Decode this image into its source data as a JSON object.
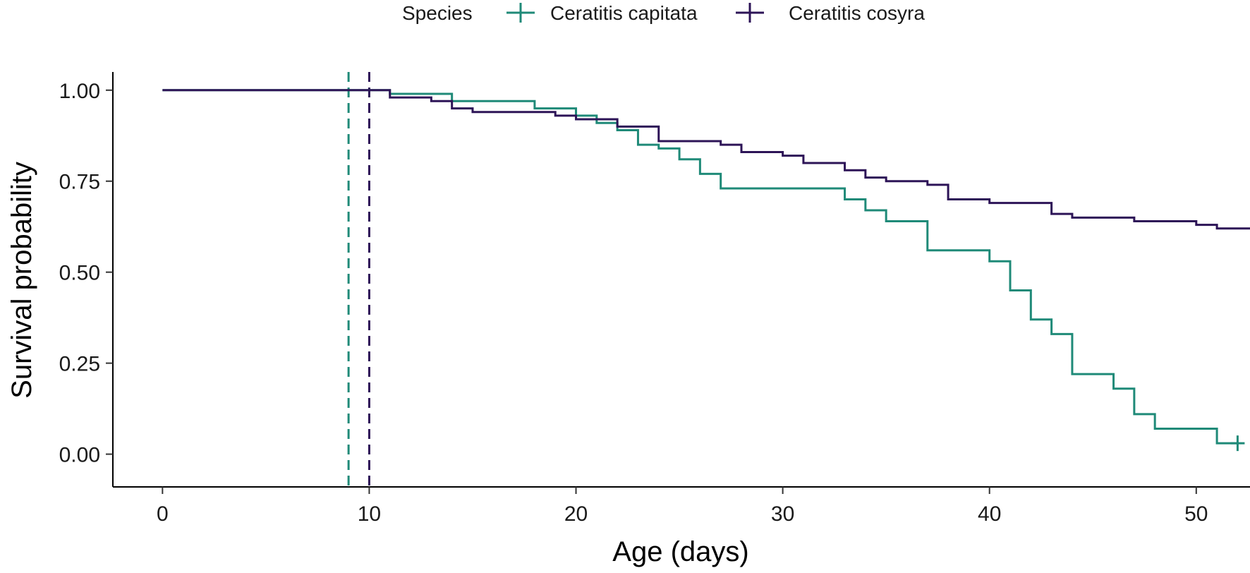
{
  "chart_data": {
    "type": "line",
    "subtype": "kaplan-meier step",
    "xlabel": "Age (days)",
    "ylabel": "Survival probability",
    "xlim": [
      -2.4,
      52.6
    ],
    "ylim": [
      -0.09,
      1.05
    ],
    "xticks": [
      0,
      10,
      20,
      30,
      40,
      50
    ],
    "yticks": [
      0.0,
      0.25,
      0.5,
      0.75,
      1.0
    ],
    "ytick_labels": [
      "0.00",
      "0.25",
      "0.50",
      "0.75",
      "1.00"
    ],
    "legend": {
      "title": "Species",
      "position": "top",
      "entries": [
        "Ceratitis capitata",
        "Ceratitis cosyra"
      ]
    },
    "vlines": [
      {
        "x": 9,
        "series": "Ceratitis capitata",
        "style": "dashed"
      },
      {
        "x": 10,
        "series": "Ceratitis cosyra",
        "style": "dashed"
      }
    ],
    "series": [
      {
        "name": "Ceratitis capitata",
        "color": "#1f8a78",
        "steps": [
          [
            0,
            1.0
          ],
          [
            11,
            0.99
          ],
          [
            14,
            0.97
          ],
          [
            18,
            0.95
          ],
          [
            20,
            0.93
          ],
          [
            21,
            0.91
          ],
          [
            22,
            0.89
          ],
          [
            23,
            0.85
          ],
          [
            24,
            0.84
          ],
          [
            25,
            0.81
          ],
          [
            26,
            0.77
          ],
          [
            27,
            0.73
          ],
          [
            33,
            0.7
          ],
          [
            34,
            0.67
          ],
          [
            35,
            0.64
          ],
          [
            37,
            0.56
          ],
          [
            40,
            0.53
          ],
          [
            41,
            0.45
          ],
          [
            42,
            0.37
          ],
          [
            43,
            0.33
          ],
          [
            44,
            0.22
          ],
          [
            46,
            0.18
          ],
          [
            47,
            0.11
          ],
          [
            48,
            0.07
          ],
          [
            49,
            0.07
          ],
          [
            51,
            0.03
          ]
        ],
        "end_x": 52,
        "censor": [
          [
            52,
            0.03
          ]
        ]
      },
      {
        "name": "Ceratitis cosyra",
        "color": "#2d1457",
        "steps": [
          [
            0,
            1.0
          ],
          [
            11,
            0.98
          ],
          [
            13,
            0.97
          ],
          [
            14,
            0.95
          ],
          [
            15,
            0.94
          ],
          [
            19,
            0.93
          ],
          [
            20,
            0.92
          ],
          [
            22,
            0.9
          ],
          [
            24,
            0.86
          ],
          [
            27,
            0.85
          ],
          [
            28,
            0.83
          ],
          [
            30,
            0.82
          ],
          [
            31,
            0.8
          ],
          [
            33,
            0.78
          ],
          [
            34,
            0.76
          ],
          [
            35,
            0.75
          ],
          [
            37,
            0.74
          ],
          [
            38,
            0.7
          ],
          [
            40,
            0.69
          ],
          [
            43,
            0.66
          ],
          [
            44,
            0.65
          ],
          [
            47,
            0.64
          ],
          [
            50,
            0.63
          ],
          [
            51,
            0.62
          ]
        ],
        "end_x": 52.6,
        "censor": []
      }
    ]
  }
}
